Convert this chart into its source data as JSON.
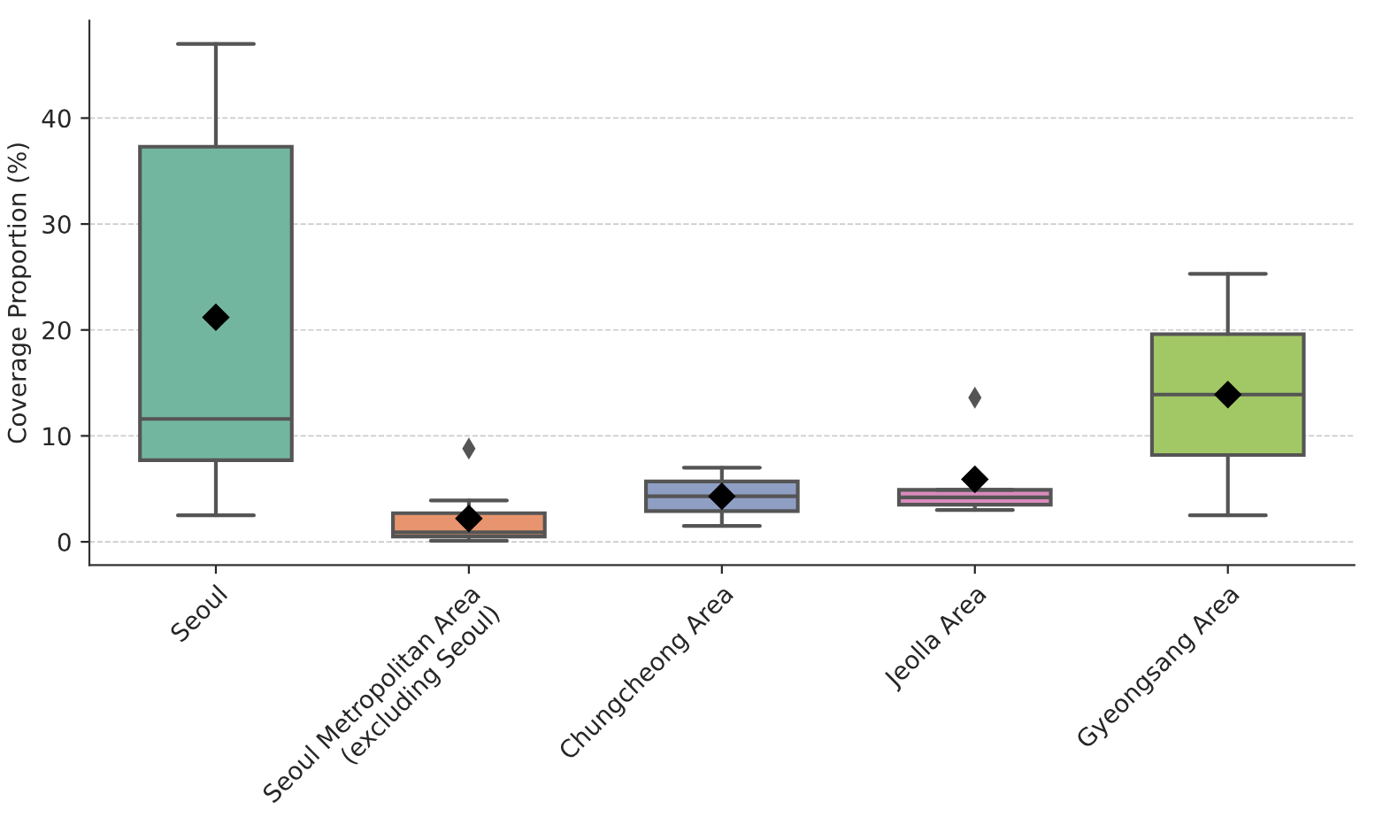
{
  "chart_data": {
    "type": "box",
    "ylabel": "Coverage Proportion (%)",
    "categories": [
      "Seoul",
      "Seoul Metropolitan Area\n(excluding Seoul)",
      "Chungcheong Area",
      "Jeolla Area",
      "Gyeongsang Area"
    ],
    "colors": [
      "#73b6a0",
      "#e8956f",
      "#8f9fc4",
      "#d98bbd",
      "#a2c865"
    ],
    "boxes": [
      {
        "low": 2.5,
        "q1": 7.7,
        "median": 11.6,
        "q3": 37.3,
        "high": 47.0,
        "mean": 21.2
      },
      {
        "low": 0.1,
        "q1": 0.5,
        "median": 0.9,
        "q3": 2.7,
        "high": 3.9,
        "mean": 2.2,
        "outliers": [
          8.8
        ]
      },
      {
        "low": 1.5,
        "q1": 2.9,
        "median": 4.3,
        "q3": 5.7,
        "high": 7.0,
        "mean": 4.3
      },
      {
        "low": 3.0,
        "q1": 3.5,
        "median": 4.2,
        "q3": 4.9,
        "high": 4.9,
        "mean": 5.9,
        "outliers": [
          13.6
        ]
      },
      {
        "low": 2.5,
        "q1": 8.2,
        "median": 13.9,
        "q3": 19.6,
        "high": 25.3,
        "mean": 13.9
      }
    ],
    "ylim": [
      -2.2,
      49.2
    ],
    "yticks": [
      0,
      10,
      20,
      30,
      40
    ],
    "grid": "y",
    "legend": false
  }
}
